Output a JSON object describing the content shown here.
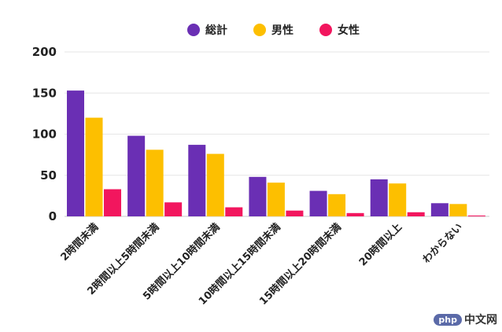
{
  "chart_data": {
    "type": "bar",
    "categories": [
      "2時間未満",
      "2時間以上5時間未満",
      "5時間以上10時間未満",
      "10時間以上15時間未満",
      "15時間以上20時間未満",
      "20時間以上",
      "わからない"
    ],
    "series": [
      {
        "name": "総計",
        "color": "#6a2fb4",
        "values": [
          153,
          98,
          87,
          48,
          31,
          45,
          16
        ]
      },
      {
        "name": "男性",
        "color": "#fdbf00",
        "values": [
          120,
          81,
          76,
          41,
          27,
          40,
          15
        ]
      },
      {
        "name": "女性",
        "color": "#f2165e",
        "values": [
          33,
          17,
          11,
          7,
          4,
          5,
          1
        ]
      }
    ],
    "ylim": [
      0,
      200
    ],
    "yticks": [
      0,
      50,
      100,
      150,
      200
    ],
    "grid": true,
    "legend": "top-center",
    "title": "",
    "xlabel": "",
    "ylabel": ""
  },
  "watermark": {
    "badge": "php",
    "text": "中文网"
  }
}
